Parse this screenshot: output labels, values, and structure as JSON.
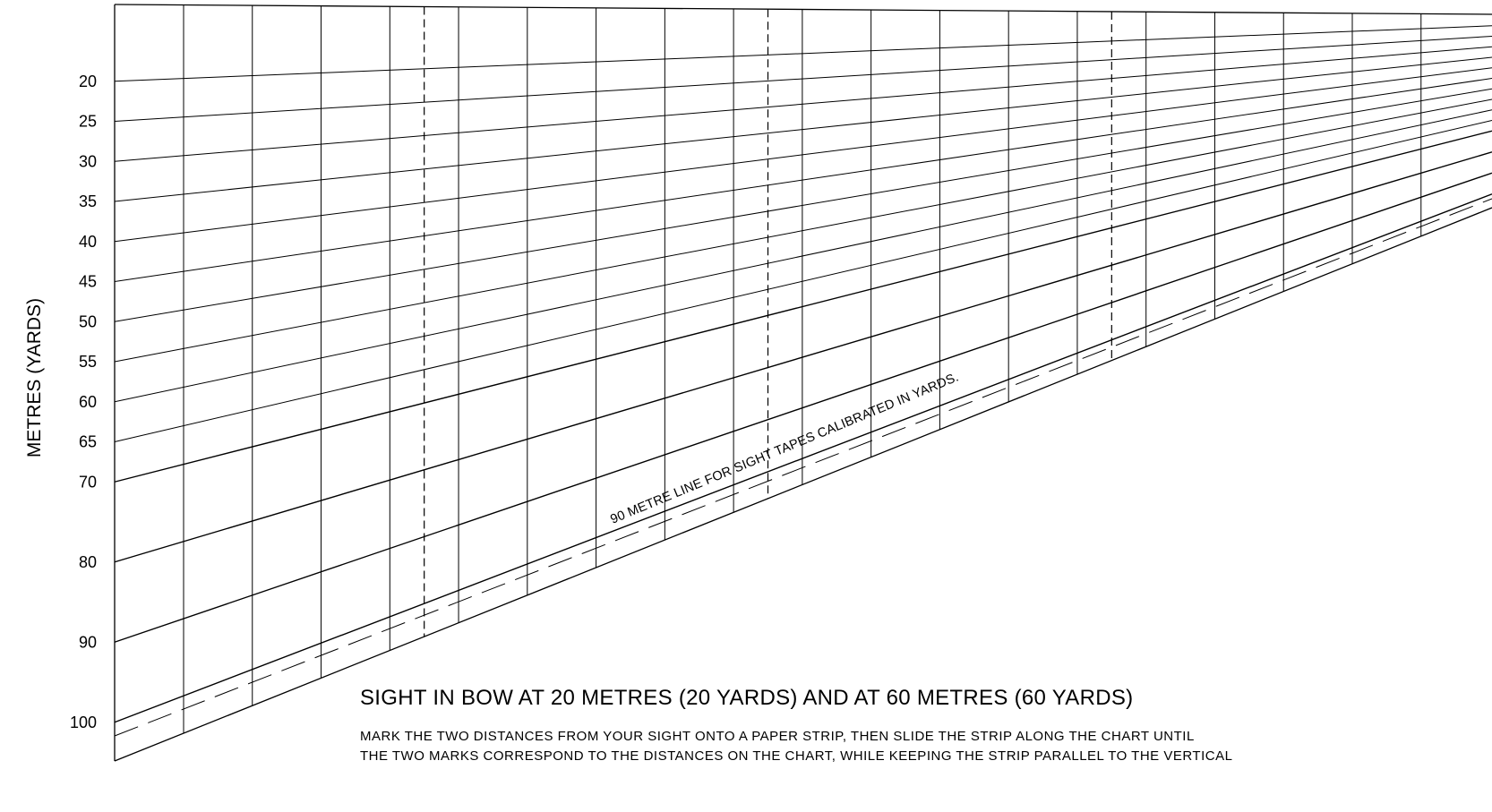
{
  "chart_data": {
    "type": "sight-calibration-nomogram",
    "y_axis_title": "METRES (YARDS)",
    "distance_labels": [
      "20",
      "25",
      "30",
      "35",
      "40",
      "45",
      "50",
      "55",
      "60",
      "65",
      "70",
      "80",
      "90",
      "100"
    ],
    "distances": [
      20,
      25,
      30,
      35,
      40,
      45,
      50,
      55,
      60,
      65,
      70,
      80,
      90,
      100
    ],
    "reference_line_label": "90 METRE LINE FOR SIGHT TAPES CALIBRATED IN YARDS.",
    "reference_line_style": "dashed",
    "vertical_lines": 19,
    "dashed_vertical_lines": 3
  },
  "instructions": {
    "title": "SIGHT IN BOW AT 20 METRES (20 YARDS) AND AT 60 METRES (60 YARDS)",
    "line1": "MARK THE TWO DISTANCES FROM YOUR SIGHT ONTO A PAPER STRIP, THEN SLIDE THE STRIP ALONG THE CHART UNTIL",
    "line2": "THE TWO MARKS CORRESPOND TO THE DISTANCES ON THE CHART, WHILE KEEPING THE STRIP PARALLEL TO THE VERTICAL"
  }
}
